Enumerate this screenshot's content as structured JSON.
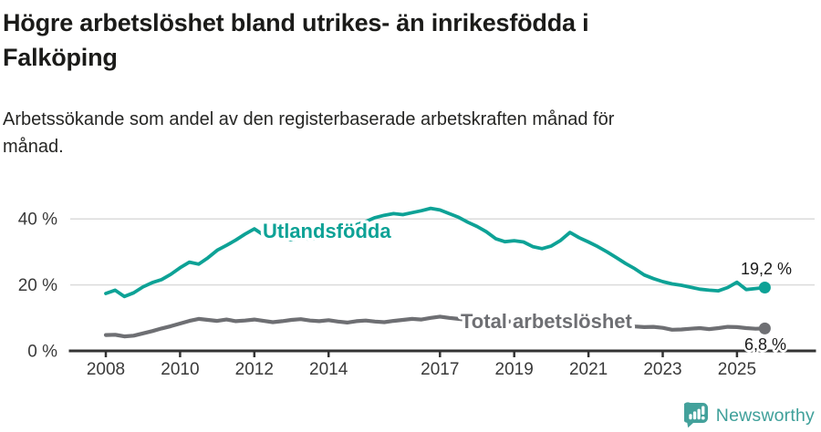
{
  "header": {
    "title_lines": [
      "Högre arbetslöshet bland utrikes- än inrikesfödda i",
      "Falköping"
    ],
    "subtitle_lines": [
      "Arbetssökande som andel av den registerbaserade arbetskraften månad för",
      "månad."
    ]
  },
  "footer": {
    "brand": "Newsworthy",
    "brand_color": "#3FA09A",
    "logo_icon": "newsworthy-badge-bar-chart-icon"
  },
  "chart_data": {
    "type": "line",
    "title": "Högre arbetslöshet bland utrikes- än inrikesfödda i Falköping",
    "subtitle": "Arbetssökande som andel av den registerbaserade arbetskraften månad för månad.",
    "unit": "%",
    "grid": true,
    "legend_position": "inline-labels",
    "x_axis": {
      "range": [
        2008,
        2026
      ],
      "ticks": [
        {
          "value": 2008,
          "label": "2008"
        },
        {
          "value": 2010,
          "label": "2010"
        },
        {
          "value": 2012,
          "label": "2012"
        },
        {
          "value": 2014,
          "label": "2014"
        },
        {
          "value": 2017,
          "label": "2017"
        },
        {
          "value": 2019,
          "label": "2019"
        },
        {
          "value": 2021,
          "label": "2021"
        },
        {
          "value": 2023,
          "label": "2023"
        },
        {
          "value": 2025,
          "label": "2025"
        }
      ]
    },
    "y_axis": {
      "range": [
        0,
        45
      ],
      "ticks": [
        {
          "value": 0,
          "label": "0 %"
        },
        {
          "value": 20,
          "label": "20 %"
        },
        {
          "value": 40,
          "label": "40 %"
        }
      ]
    },
    "series": [
      {
        "name": "Utlandsfödda",
        "color": "#0DA296",
        "end_label": "19,2 %",
        "end_value": 19.2,
        "points": [
          [
            2008.0,
            17.4
          ],
          [
            2008.25,
            18.4
          ],
          [
            2008.5,
            16.5
          ],
          [
            2008.75,
            17.6
          ],
          [
            2009.0,
            19.4
          ],
          [
            2009.25,
            20.7
          ],
          [
            2009.5,
            21.6
          ],
          [
            2009.75,
            23.2
          ],
          [
            2010.0,
            25.2
          ],
          [
            2010.25,
            26.9
          ],
          [
            2010.5,
            26.3
          ],
          [
            2010.75,
            28.2
          ],
          [
            2011.0,
            30.5
          ],
          [
            2011.25,
            32.0
          ],
          [
            2011.5,
            33.6
          ],
          [
            2011.75,
            35.4
          ],
          [
            2012.0,
            37.0
          ],
          [
            2012.25,
            35.1
          ],
          [
            2012.5,
            35.8
          ],
          [
            2012.75,
            34.0
          ],
          [
            2013.0,
            33.7
          ],
          [
            2013.25,
            34.3
          ],
          [
            2013.5,
            33.8
          ],
          [
            2013.75,
            34.4
          ],
          [
            2014.0,
            35.6
          ],
          [
            2014.25,
            36.4
          ],
          [
            2014.5,
            37.3
          ],
          [
            2014.75,
            38.2
          ],
          [
            2015.0,
            39.2
          ],
          [
            2015.25,
            40.4
          ],
          [
            2015.5,
            41.1
          ],
          [
            2015.75,
            41.6
          ],
          [
            2016.0,
            41.3
          ],
          [
            2016.25,
            41.9
          ],
          [
            2016.5,
            42.5
          ],
          [
            2016.75,
            43.2
          ],
          [
            2017.0,
            42.7
          ],
          [
            2017.25,
            41.6
          ],
          [
            2017.5,
            40.5
          ],
          [
            2017.75,
            39.0
          ],
          [
            2018.0,
            37.7
          ],
          [
            2018.25,
            36.1
          ],
          [
            2018.5,
            34.0
          ],
          [
            2018.75,
            33.1
          ],
          [
            2019.0,
            33.4
          ],
          [
            2019.25,
            33.0
          ],
          [
            2019.5,
            31.6
          ],
          [
            2019.75,
            31.0
          ],
          [
            2020.0,
            31.8
          ],
          [
            2020.25,
            33.5
          ],
          [
            2020.5,
            35.9
          ],
          [
            2020.75,
            34.3
          ],
          [
            2021.0,
            33.0
          ],
          [
            2021.25,
            31.6
          ],
          [
            2021.5,
            30.0
          ],
          [
            2021.75,
            28.3
          ],
          [
            2022.0,
            26.5
          ],
          [
            2022.25,
            24.9
          ],
          [
            2022.5,
            23.0
          ],
          [
            2022.75,
            21.9
          ],
          [
            2023.0,
            21.0
          ],
          [
            2023.25,
            20.3
          ],
          [
            2023.5,
            19.9
          ],
          [
            2023.75,
            19.3
          ],
          [
            2024.0,
            18.7
          ],
          [
            2024.25,
            18.4
          ],
          [
            2024.5,
            18.2
          ],
          [
            2024.75,
            19.2
          ],
          [
            2025.0,
            20.8
          ],
          [
            2025.25,
            18.6
          ],
          [
            2025.5,
            18.9
          ],
          [
            2025.75,
            19.2
          ]
        ]
      },
      {
        "name": "Total arbetslöshet",
        "color": "#6E6F73",
        "end_label": "6,8 %",
        "end_value": 6.8,
        "points": [
          [
            2008.0,
            4.8
          ],
          [
            2008.25,
            4.9
          ],
          [
            2008.5,
            4.4
          ],
          [
            2008.75,
            4.6
          ],
          [
            2009.0,
            5.3
          ],
          [
            2009.25,
            6.0
          ],
          [
            2009.5,
            6.8
          ],
          [
            2009.75,
            7.5
          ],
          [
            2010.0,
            8.3
          ],
          [
            2010.25,
            9.1
          ],
          [
            2010.5,
            9.7
          ],
          [
            2010.75,
            9.4
          ],
          [
            2011.0,
            9.1
          ],
          [
            2011.25,
            9.5
          ],
          [
            2011.5,
            9.0
          ],
          [
            2011.75,
            9.2
          ],
          [
            2012.0,
            9.5
          ],
          [
            2012.25,
            9.1
          ],
          [
            2012.5,
            8.7
          ],
          [
            2012.75,
            9.0
          ],
          [
            2013.0,
            9.4
          ],
          [
            2013.25,
            9.6
          ],
          [
            2013.5,
            9.2
          ],
          [
            2013.75,
            9.0
          ],
          [
            2014.0,
            9.3
          ],
          [
            2014.25,
            8.9
          ],
          [
            2014.5,
            8.6
          ],
          [
            2014.75,
            9.0
          ],
          [
            2015.0,
            9.2
          ],
          [
            2015.25,
            8.9
          ],
          [
            2015.5,
            8.7
          ],
          [
            2015.75,
            9.1
          ],
          [
            2016.0,
            9.4
          ],
          [
            2016.25,
            9.7
          ],
          [
            2016.5,
            9.5
          ],
          [
            2016.75,
            10.0
          ],
          [
            2017.0,
            10.4
          ],
          [
            2017.25,
            10.0
          ],
          [
            2017.5,
            9.7
          ],
          [
            2017.75,
            9.4
          ],
          [
            2018.0,
            9.1
          ],
          [
            2018.25,
            8.9
          ],
          [
            2018.5,
            8.7
          ],
          [
            2018.75,
            9.0
          ],
          [
            2019.0,
            8.8
          ],
          [
            2019.25,
            8.6
          ],
          [
            2019.5,
            8.4
          ],
          [
            2019.75,
            8.7
          ],
          [
            2020.0,
            9.1
          ],
          [
            2020.25,
            9.9
          ],
          [
            2020.5,
            9.7
          ],
          [
            2020.75,
            9.5
          ],
          [
            2021.0,
            9.3
          ],
          [
            2021.25,
            8.9
          ],
          [
            2021.5,
            8.4
          ],
          [
            2021.75,
            8.0
          ],
          [
            2022.0,
            7.7
          ],
          [
            2022.25,
            7.4
          ],
          [
            2022.5,
            7.2
          ],
          [
            2022.75,
            7.3
          ],
          [
            2023.0,
            7.0
          ],
          [
            2023.25,
            6.4
          ],
          [
            2023.5,
            6.5
          ],
          [
            2023.75,
            6.7
          ],
          [
            2024.0,
            6.9
          ],
          [
            2024.25,
            6.6
          ],
          [
            2024.5,
            6.9
          ],
          [
            2024.75,
            7.3
          ],
          [
            2025.0,
            7.2
          ],
          [
            2025.25,
            6.9
          ],
          [
            2025.5,
            6.7
          ],
          [
            2025.75,
            6.8
          ]
        ]
      }
    ]
  }
}
